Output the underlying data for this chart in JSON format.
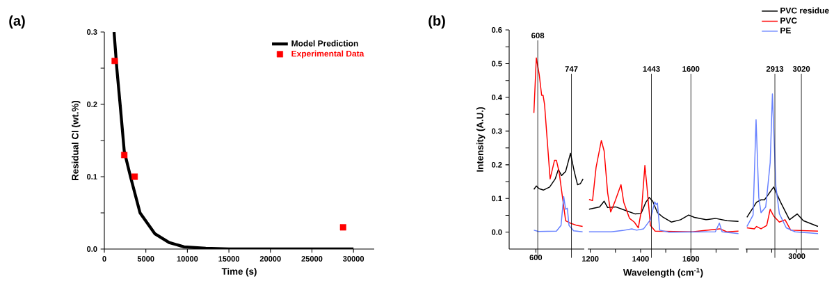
{
  "chart_data": [
    {
      "type": "line",
      "xlabel": "Time (s)",
      "ylabel": "Residual Cl (wt.%)",
      "xlim": [
        0,
        32500
      ],
      "ylim": [
        0,
        0.3
      ],
      "xticks": [
        0,
        5000,
        10000,
        15000,
        20000,
        25000,
        30000
      ],
      "yticks": [
        {
          "value": 0,
          "label": "0.0"
        },
        {
          "value": 0.05,
          "label": null
        },
        0.1,
        {
          "value": 0.15,
          "label": null
        },
        0.2,
        {
          "value": 0.25,
          "label": null
        },
        0.3
      ],
      "legend": "top right",
      "annotations": [
        "(a)"
      ],
      "series": [
        {
          "name": "Model Prediction",
          "type": "line",
          "color": "#000000",
          "x": [
            1170,
            1500,
            1900,
            2400,
            3150,
            4300,
            6100,
            7800,
            9600,
            12200,
            15000,
            20000,
            25000,
            30000
          ],
          "values": [
            0.3,
            0.25,
            0.2,
            0.135,
            0.1,
            0.05,
            0.021,
            0.009,
            0.003,
            0.001,
            0,
            0,
            0,
            0
          ]
        },
        {
          "name": "Experimental Data",
          "type": "scatter",
          "marker": "square",
          "color": "#ff0000",
          "x": [
            1250,
            2400,
            3650,
            28750
          ],
          "values": [
            0.26,
            0.13,
            0.1,
            0.03
          ]
        }
      ]
    },
    {
      "type": "line",
      "ylabel": "Intensity (A.U.)",
      "xlim": [
        490,
        800
      ],
      "ylim": [
        -0.05,
        0.6
      ],
      "xticks": [
        {
          "value": 600,
          "label": null
        }
      ],
      "yticks": [
        {
          "value": 0,
          "label": "0.0"
        },
        {
          "value": 0.05,
          "label": null
        },
        0.1,
        {
          "value": 0.15,
          "label": null
        },
        0.2,
        {
          "value": 0.25,
          "label": null
        },
        0.3,
        {
          "value": 0.35,
          "label": null
        },
        0.4,
        {
          "value": 0.45,
          "label": null
        },
        0.5,
        {
          "value": 0.55,
          "label": null
        },
        0.6
      ],
      "annotations": [
        "(b)",
        {
          "text": "600",
          "x": 600,
          "y": -0.05
        }
      ],
      "ref_lines": [
        {
          "axis": "x",
          "value": 608,
          "label": "608"
        },
        {
          "axis": "x",
          "value": 747,
          "label": "747"
        }
      ],
      "series": [
        {
          "color": "#000000",
          "x": [
            592,
            602,
            614,
            632,
            657,
            680,
            693,
            706,
            723,
            743,
            759,
            772,
            784,
            795
          ],
          "values": [
            0.127,
            0.137,
            0.129,
            0.125,
            0.134,
            0.158,
            0.186,
            0.168,
            0.18,
            0.234,
            0.179,
            0.141,
            0.144,
            0.158
          ]
        },
        {
          "color": "#ff0000",
          "x": [
            592,
            602,
            614,
            624,
            630,
            636,
            659,
            677,
            685,
            696,
            723,
            742,
            770,
            793
          ],
          "values": [
            0.354,
            0.517,
            0.468,
            0.406,
            0.406,
            0.379,
            0.158,
            0.213,
            0.213,
            0.179,
            0.034,
            0.027,
            0.02,
            0.017
          ]
        },
        {
          "color": "#6680ff",
          "x": [
            592,
            611,
            685,
            704,
            715,
            723,
            730,
            737,
            756,
            793
          ],
          "values": [
            0.006,
            0.002,
            0.003,
            0.02,
            0.106,
            0.068,
            0.071,
            0.02,
            0.004,
            0.001
          ]
        }
      ]
    },
    {
      "type": "line",
      "xlabel": "Wavelength (cm$^{-1}$)",
      "xlim": [
        1190,
        1790
      ],
      "ylim": [
        -0.05,
        0.6
      ],
      "tick_labels": "x",
      "xticks": [
        1200,
        {
          "value": 1300,
          "label": null
        },
        1400,
        {
          "value": 1500,
          "label": null
        },
        1600,
        {
          "value": 1700,
          "label": null
        }
      ],
      "ref_lines": [
        {
          "axis": "x",
          "value": 1443,
          "label": "1443"
        },
        {
          "axis": "x",
          "value": 1600,
          "label": "1600"
        }
      ],
      "series": [
        {
          "color": "#000000",
          "x": [
            1195,
            1237,
            1255,
            1269,
            1301,
            1338,
            1379,
            1402,
            1421,
            1434,
            1448,
            1467,
            1490,
            1522,
            1559,
            1591,
            1614,
            1660,
            1697,
            1743,
            1789
          ],
          "values": [
            0.068,
            0.075,
            0.092,
            0.073,
            0.075,
            0.065,
            0.054,
            0.056,
            0.089,
            0.103,
            0.092,
            0.058,
            0.044,
            0.03,
            0.037,
            0.051,
            0.044,
            0.037,
            0.041,
            0.034,
            0.032
          ]
        },
        {
          "color": "#ff0000",
          "x": [
            1195,
            1209,
            1223,
            1244,
            1255,
            1269,
            1281,
            1297,
            1322,
            1333,
            1356,
            1375,
            1391,
            1404,
            1417,
            1425,
            1439,
            1458,
            1605,
            1715,
            1743,
            1789
          ],
          "values": [
            0.097,
            0.094,
            0.192,
            0.272,
            0.241,
            0.117,
            0.06,
            0.089,
            0.141,
            0.089,
            0.041,
            0.03,
            0.013,
            0.068,
            0.198,
            0.137,
            0.02,
            0.003,
            0.001,
            0.01,
            0.001,
            0.003
          ]
        },
        {
          "color": "#6680ff",
          "x": [
            1195,
            1283,
            1329,
            1365,
            1384,
            1412,
            1439,
            1456,
            1462,
            1467,
            1476,
            1513,
            1697,
            1713,
            1724,
            1789
          ],
          "values": [
            0.001,
            0.001,
            0.005,
            0.01,
            0.006,
            0.01,
            0.037,
            0.09,
            0.082,
            0.086,
            0.006,
            0,
            0.001,
            0.027,
            0.001,
            -0.004
          ]
        }
      ]
    },
    {
      "type": "line",
      "xlim": [
        2795,
        3090
      ],
      "ylim": [
        -0.05,
        0.6
      ],
      "tick_labels": "x",
      "legend": "top right",
      "xticks": [
        {
          "value": 2800,
          "label": null
        },
        {
          "value": 2900,
          "label": null
        },
        {
          "value": 3000,
          "label": null
        }
      ],
      "annotations": [
        "3000"
      ],
      "ref_lines": [
        {
          "axis": "x",
          "value": 2913,
          "label": "2913"
        },
        {
          "axis": "x",
          "value": 3020,
          "label": "3020"
        }
      ],
      "series": [
        {
          "name": "PVC residue",
          "color": "#000000",
          "x": [
            2800,
            2839,
            2857,
            2871,
            2908,
            2936,
            2972,
            3003,
            3028,
            3087
          ],
          "values": [
            0.044,
            0.089,
            0.096,
            0.096,
            0.134,
            0.089,
            0.037,
            0.054,
            0.034,
            0.017
          ]
        },
        {
          "name": "PVC",
          "color": "#ff0000",
          "x": [
            2800,
            2830,
            2839,
            2857,
            2880,
            2894,
            2908,
            2931,
            2954,
            2977,
            3087
          ],
          "values": [
            0.013,
            0.01,
            0.017,
            0.01,
            0.02,
            0.068,
            0.048,
            0.03,
            0.037,
            0.006,
            0.003
          ]
        },
        {
          "name": "PE",
          "color": "#6680ff",
          "x": [
            2800,
            2825,
            2837,
            2848,
            2857,
            2876,
            2894,
            2903,
            2917,
            2931,
            2959,
            2995,
            3087
          ],
          "values": [
            0.017,
            0.051,
            0.334,
            0.103,
            0.058,
            0.075,
            0.206,
            0.41,
            0.137,
            0.055,
            0.013,
            0.001,
            -0.004
          ]
        }
      ]
    }
  ]
}
